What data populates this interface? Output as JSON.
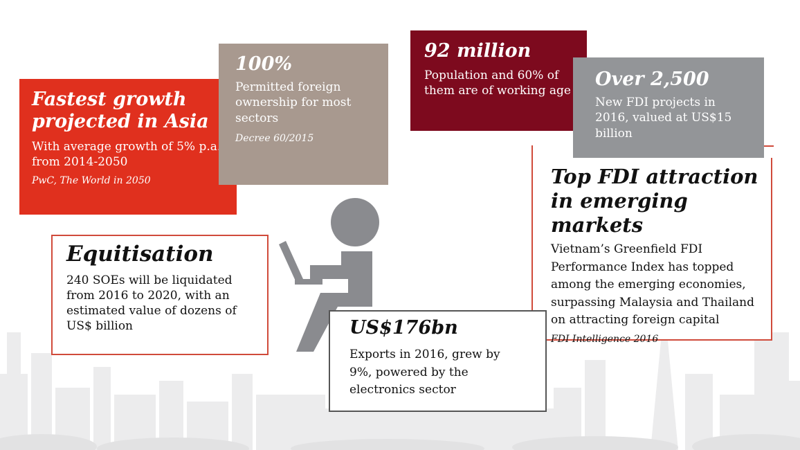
{
  "cards": {
    "growth": {
      "title_line1": "Fastest growth",
      "title_line2": "projected in Asia",
      "body": "With average growth of 5% p.a. from 2014-2050",
      "source": "PwC, The World in 2050",
      "color": "#e0301e"
    },
    "ownership": {
      "title": "100%",
      "body": "Permitted foreign ownership for most sectors",
      "source": "Decree 60/2015",
      "color": "#a8998f"
    },
    "population": {
      "title": "92 million",
      "body": "Population and 60% of them are of working age",
      "color": "#7d0a1e"
    },
    "fdi_projects": {
      "title": "Over 2,500",
      "body": "New FDI projects in 2016, valued at US$15 billion",
      "color": "#939598"
    },
    "fdi_attraction": {
      "title_line1": "Top FDI attraction",
      "title_line2": "in emerging markets",
      "body": "Vietnam’s Greenfield FDI Performance Index has topped among the emerging economies, surpassing Malaysia and Thailand on attracting foreign capital",
      "source": "FDI Intelligence 2016",
      "border": "#d04a3a"
    },
    "equitisation": {
      "title": "Equitisation",
      "body": "240 SOEs will be liquidated from 2016 to 2020, with an estimated value of dozens of US$ billion",
      "border": "#d04a3a"
    },
    "exports": {
      "title": "US$176bn",
      "body": "Exports in 2016, grew by 9%, powered by the electronics sector",
      "border": "#555555"
    }
  },
  "icons": {
    "figure": "person-with-laptop-icon",
    "background": "city-skyline"
  }
}
